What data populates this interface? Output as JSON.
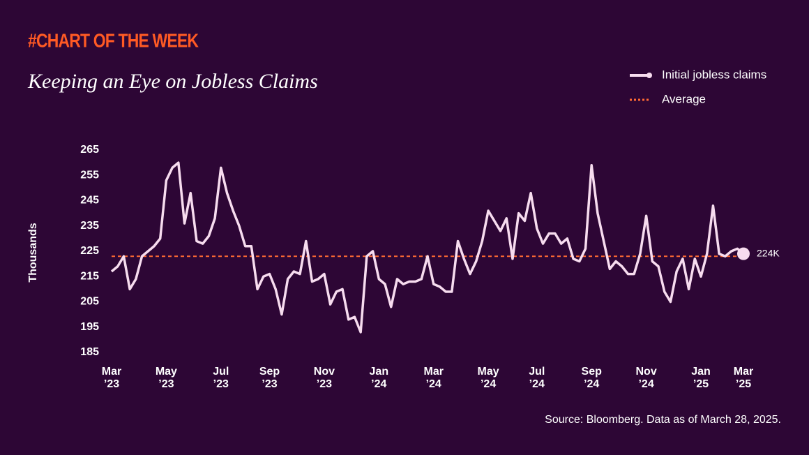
{
  "chart_data": {
    "type": "line",
    "kicker": "#CHART OF THE WEEK",
    "title": "Keeping an Eye on Jobless Claims",
    "y_label": "Thousands",
    "source": "Source: Bloomberg. Data as of March 28, 2025.",
    "categories": [
      "Mar ’23",
      null,
      null,
      null,
      null,
      null,
      null,
      null,
      null,
      "May ’23",
      null,
      null,
      null,
      null,
      null,
      null,
      null,
      null,
      "Jul ’23",
      null,
      null,
      null,
      null,
      null,
      null,
      null,
      "Sep ’23",
      null,
      null,
      null,
      null,
      null,
      null,
      null,
      null,
      "Nov ’23",
      null,
      null,
      null,
      null,
      null,
      null,
      null,
      null,
      "Jan ’24",
      null,
      null,
      null,
      null,
      null,
      null,
      null,
      null,
      "Mar ’24",
      null,
      null,
      null,
      null,
      null,
      null,
      null,
      null,
      "May ’24",
      null,
      null,
      null,
      null,
      null,
      null,
      null,
      "Jul ’24",
      null,
      null,
      null,
      null,
      null,
      null,
      null,
      null,
      "Sep ’24",
      null,
      null,
      null,
      null,
      null,
      null,
      null,
      null,
      "Nov ’24",
      null,
      null,
      null,
      null,
      null,
      null,
      null,
      null,
      "Jan ’25",
      null,
      null,
      null,
      null,
      null,
      null,
      "Mar ’25"
    ],
    "series": [
      {
        "name": "Initial jobless claims",
        "color": "#f7dcef",
        "values": [
          217,
          219,
          223,
          210,
          214,
          223,
          225,
          227,
          230,
          253,
          258,
          260,
          236,
          248,
          229,
          228,
          231,
          238,
          258,
          248,
          241,
          235,
          227,
          227,
          210,
          215,
          216,
          210,
          200,
          214,
          217,
          216,
          229,
          213,
          214,
          216,
          204,
          209,
          210,
          198,
          199,
          193,
          223,
          225,
          214,
          212,
          203,
          214,
          212,
          213,
          213,
          214,
          223,
          212,
          211,
          209,
          209,
          229,
          222,
          216,
          221,
          229,
          241,
          237,
          233,
          238,
          222,
          240,
          237,
          248,
          234,
          228,
          232,
          232,
          228,
          230,
          222,
          221,
          226,
          259,
          240,
          229,
          218,
          221,
          219,
          216,
          216,
          224,
          239,
          221,
          219,
          209,
          205,
          217,
          222,
          210,
          222,
          215,
          224,
          243,
          224,
          223,
          225,
          226,
          224
        ],
        "value_labels": [
          null,
          null,
          null,
          null,
          null,
          null,
          null,
          null,
          null,
          null,
          null,
          null,
          null,
          null,
          null,
          null,
          null,
          null,
          null,
          null,
          null,
          null,
          null,
          null,
          null,
          null,
          null,
          null,
          null,
          null,
          null,
          null,
          null,
          null,
          null,
          null,
          null,
          null,
          null,
          null,
          null,
          null,
          null,
          null,
          null,
          null,
          null,
          null,
          null,
          null,
          null,
          null,
          null,
          null,
          null,
          null,
          null,
          null,
          null,
          null,
          null,
          null,
          null,
          null,
          null,
          null,
          null,
          null,
          null,
          null,
          null,
          null,
          null,
          null,
          null,
          null,
          null,
          null,
          null,
          null,
          null,
          null,
          null,
          null,
          null,
          null,
          null,
          null,
          null,
          null,
          null,
          null,
          null,
          null,
          null,
          null,
          null,
          null,
          null,
          null,
          null,
          null,
          null,
          null,
          "224K"
        ]
      }
    ],
    "average": {
      "name": "Average",
      "value": 223,
      "color": "#ff6a33"
    },
    "ylim": [
      185,
      265
    ],
    "yticks": [
      185,
      195,
      205,
      215,
      225,
      235,
      245,
      255,
      265
    ],
    "grid": false,
    "legend": "top-right"
  }
}
